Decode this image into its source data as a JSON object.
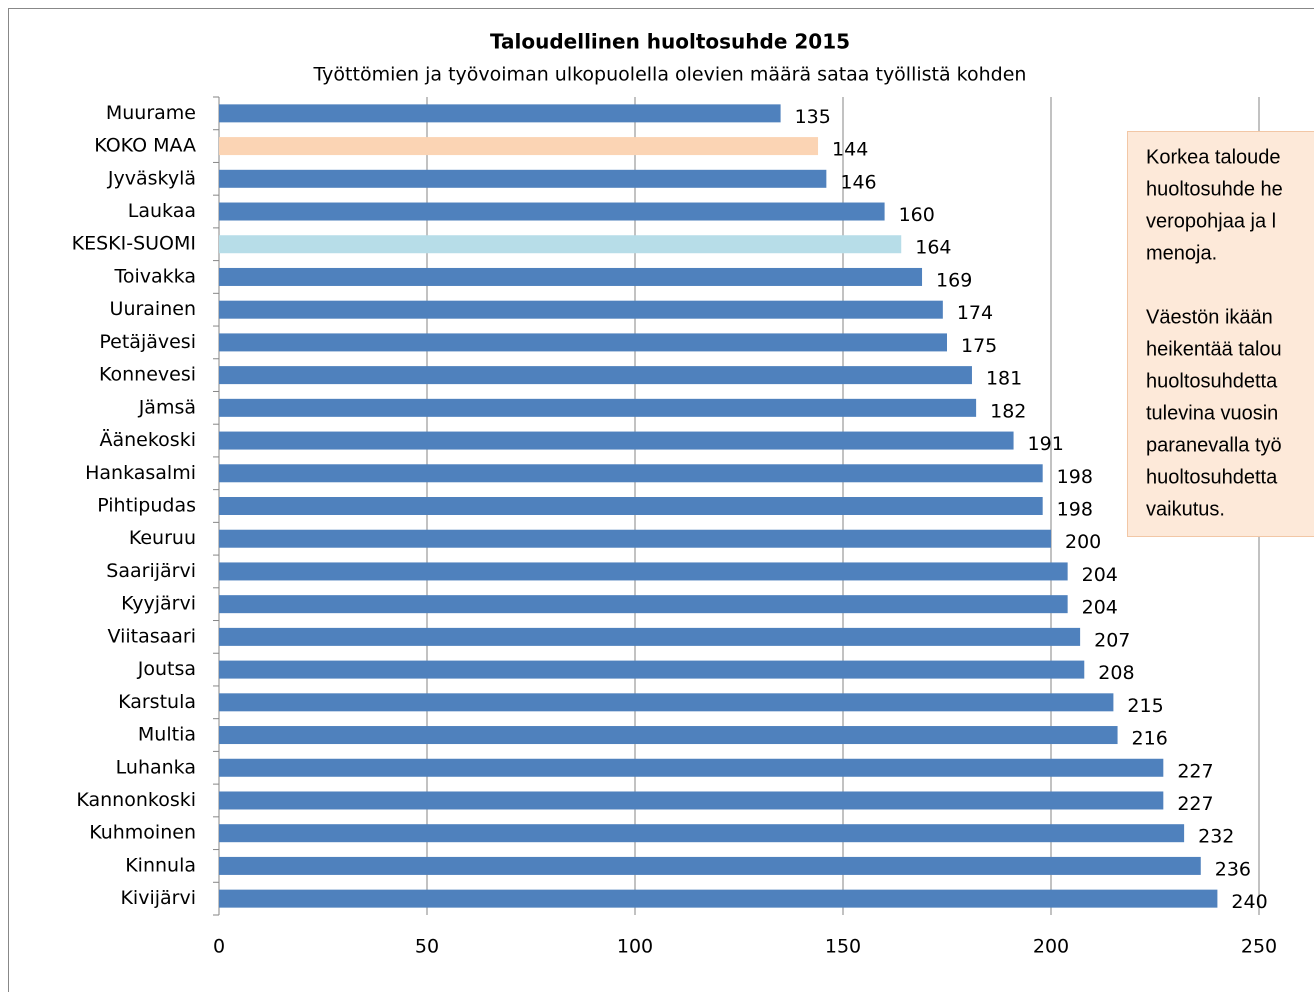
{
  "chart_data": {
    "type": "bar",
    "orientation": "horizontal",
    "title": "Taloudellinen huoltosuhde 2015",
    "subtitle": "Työttömien ja työvoiman ulkopuolella olevien määrä sataa työllistä kohden",
    "categories": [
      "Muurame",
      "KOKO MAA",
      "Jyväskylä",
      "Laukaa",
      "KESKI-SUOMI",
      "Toivakka",
      "Uurainen",
      "Petäjävesi",
      "Konnevesi",
      "Jämsä",
      "Äänekoski",
      "Hankasalmi",
      "Pihtipudas",
      "Keuruu",
      "Saarijärvi",
      "Kyyjärvi",
      "Viitasaari",
      "Joutsa",
      "Karstula",
      "Multia",
      "Luhanka",
      "Kannonkoski",
      "Kuhmoinen",
      "Kinnula",
      "Kivijärvi"
    ],
    "values": [
      135,
      144,
      146,
      160,
      164,
      169,
      174,
      175,
      181,
      182,
      191,
      198,
      198,
      200,
      204,
      204,
      207,
      208,
      215,
      216,
      227,
      227,
      232,
      236,
      240
    ],
    "colors": [
      "#4f81bd",
      "#fbd4b4",
      "#4f81bd",
      "#4f81bd",
      "#b7dde8",
      "#4f81bd",
      "#4f81bd",
      "#4f81bd",
      "#4f81bd",
      "#4f81bd",
      "#4f81bd",
      "#4f81bd",
      "#4f81bd",
      "#4f81bd",
      "#4f81bd",
      "#4f81bd",
      "#4f81bd",
      "#4f81bd",
      "#4f81bd",
      "#4f81bd",
      "#4f81bd",
      "#4f81bd",
      "#4f81bd",
      "#4f81bd",
      "#4f81bd"
    ],
    "xlim": [
      0,
      250
    ],
    "xticks": [
      0,
      50,
      100,
      150,
      200,
      250
    ],
    "grid": true,
    "annotation": {
      "paragraphs": [
        [
          "Korkea taloude",
          "huoltosuhde he",
          "veropohjaa ja l",
          "menoja."
        ],
        [
          "Väestön ikään",
          "heikentää talou",
          "huoltosuhdetta",
          "tulevina vuosin",
          "paranevalla työ",
          "huoltosuhdetta",
          "vaikutus."
        ]
      ]
    }
  }
}
